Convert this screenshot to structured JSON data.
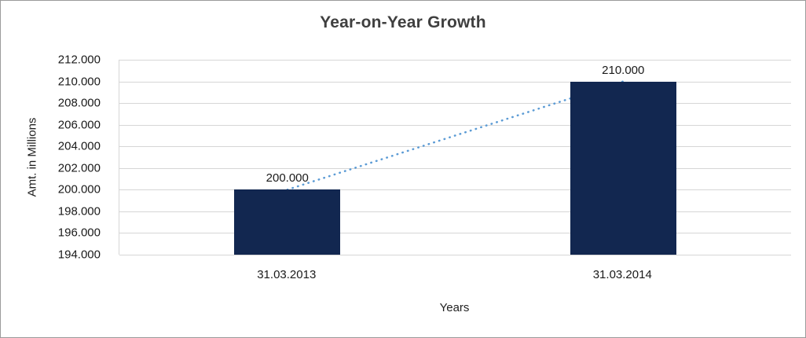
{
  "chart_data": {
    "type": "bar",
    "title": "Year-on-Year Growth",
    "xlabel": "Years",
    "ylabel": "Amt. in Millions",
    "categories": [
      "31.03.2013",
      "31.03.2014"
    ],
    "values": [
      200000,
      210000
    ],
    "data_labels": [
      "200.000",
      "210.000"
    ],
    "ylim": [
      194000,
      212000
    ],
    "ytick_step": 2000,
    "ytick_labels": [
      "194.000",
      "196.000",
      "198.000",
      "200.000",
      "202.000",
      "204.000",
      "206.000",
      "208.000",
      "210.000",
      "212.000"
    ],
    "grid": true,
    "legend": "none",
    "bar_color": "#122750",
    "gridline_color": "#d6d6d6",
    "trendline": {
      "style": "dotted",
      "color": "#5b9bd5"
    }
  }
}
